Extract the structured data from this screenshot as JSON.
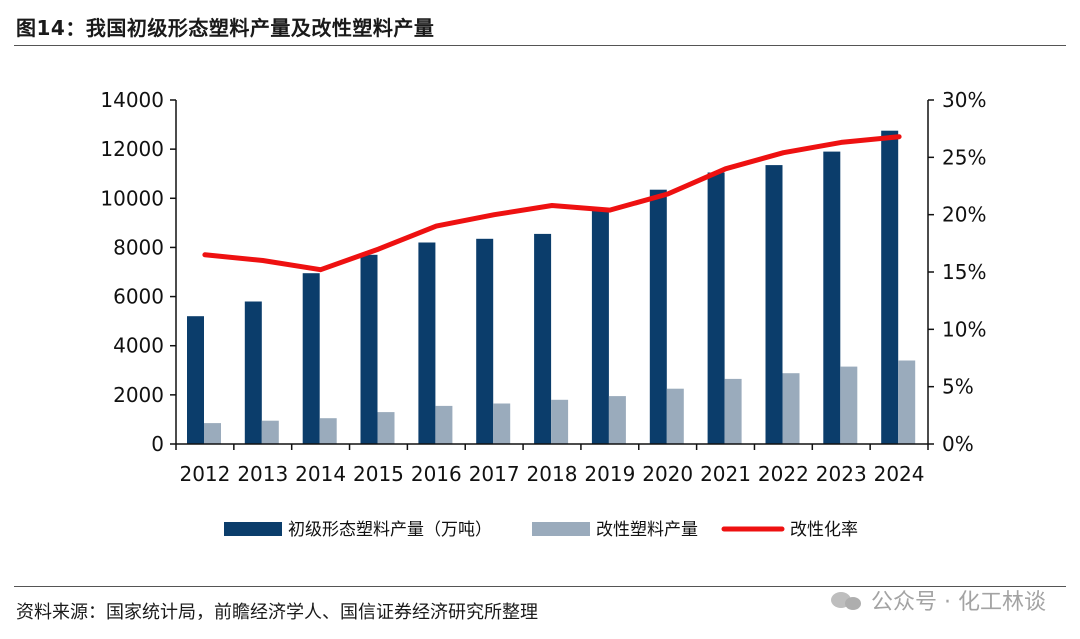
{
  "header": {
    "title": "图14：我国初级形态塑料产量及改性塑料产量"
  },
  "footer": {
    "source": "资料来源：国家统计局，前瞻经济学人、国信证券经济研究所整理",
    "watermark": "公众号 · 化工林谈",
    "watermark_icon": "wechat-icon"
  },
  "colors": {
    "primary_bar": "#0b3d6b",
    "modified_bar": "#9aabbc",
    "rate_line": "#ee1111",
    "axis": "#111111"
  },
  "chart_data": {
    "type": "bar",
    "categories": [
      "2012",
      "2013",
      "2014",
      "2015",
      "2016",
      "2017",
      "2018",
      "2019",
      "2020",
      "2021",
      "2022",
      "2023",
      "2024"
    ],
    "series": [
      {
        "name": "初级形态塑料产量（万吨）",
        "type": "bar",
        "axis": "left",
        "values": [
          5200,
          5800,
          6950,
          7700,
          8200,
          8350,
          8550,
          9600,
          10350,
          11050,
          11350,
          11900,
          12750
        ]
      },
      {
        "name": "改性塑料产量",
        "type": "bar",
        "axis": "left",
        "values": [
          850,
          950,
          1050,
          1300,
          1550,
          1650,
          1800,
          1950,
          2250,
          2650,
          2880,
          3150,
          3400
        ]
      },
      {
        "name": "改性化率",
        "type": "line",
        "axis": "right",
        "values": [
          16.5,
          16.0,
          15.2,
          17.0,
          19.0,
          20.0,
          20.8,
          20.4,
          21.8,
          24.0,
          25.4,
          26.3,
          26.8
        ]
      }
    ],
    "y_left": {
      "min": 0,
      "max": 14000,
      "ticks": [
        0,
        2000,
        4000,
        6000,
        8000,
        10000,
        12000,
        14000
      ],
      "tick_labels": [
        "0",
        "2000",
        "4000",
        "6000",
        "8000",
        "10000",
        "12000",
        "14000"
      ]
    },
    "y_right": {
      "min": 0,
      "max": 30,
      "ticks": [
        0,
        5,
        10,
        15,
        20,
        25,
        30
      ],
      "tick_labels": [
        "0%",
        "5%",
        "10%",
        "15%",
        "20%",
        "25%",
        "30%"
      ]
    },
    "grid": false,
    "legend": "bottom"
  }
}
